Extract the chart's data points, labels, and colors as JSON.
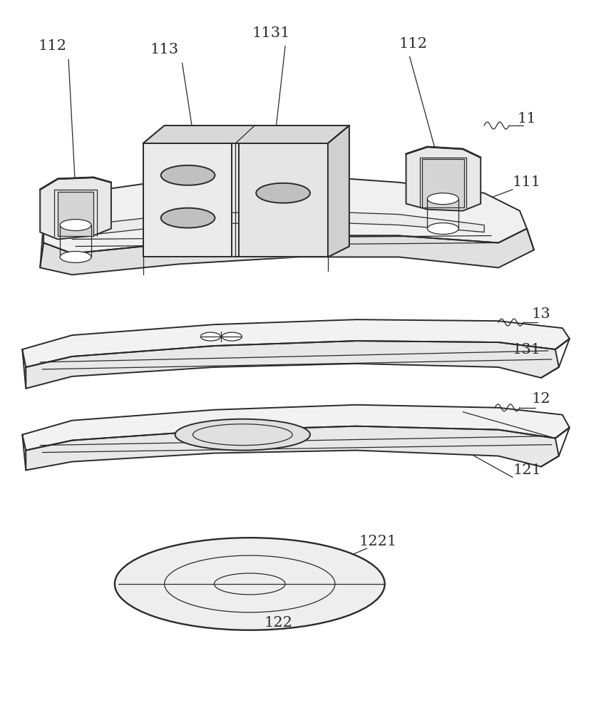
{
  "bg_color": "#ffffff",
  "line_color": "#2a2a2a",
  "lw_main": 1.4,
  "lw_thin": 0.9,
  "label_fontsize": 15,
  "label_font": "DejaVu Serif",
  "fig_w": 8.57,
  "fig_h": 10.0,
  "dpi": 100
}
